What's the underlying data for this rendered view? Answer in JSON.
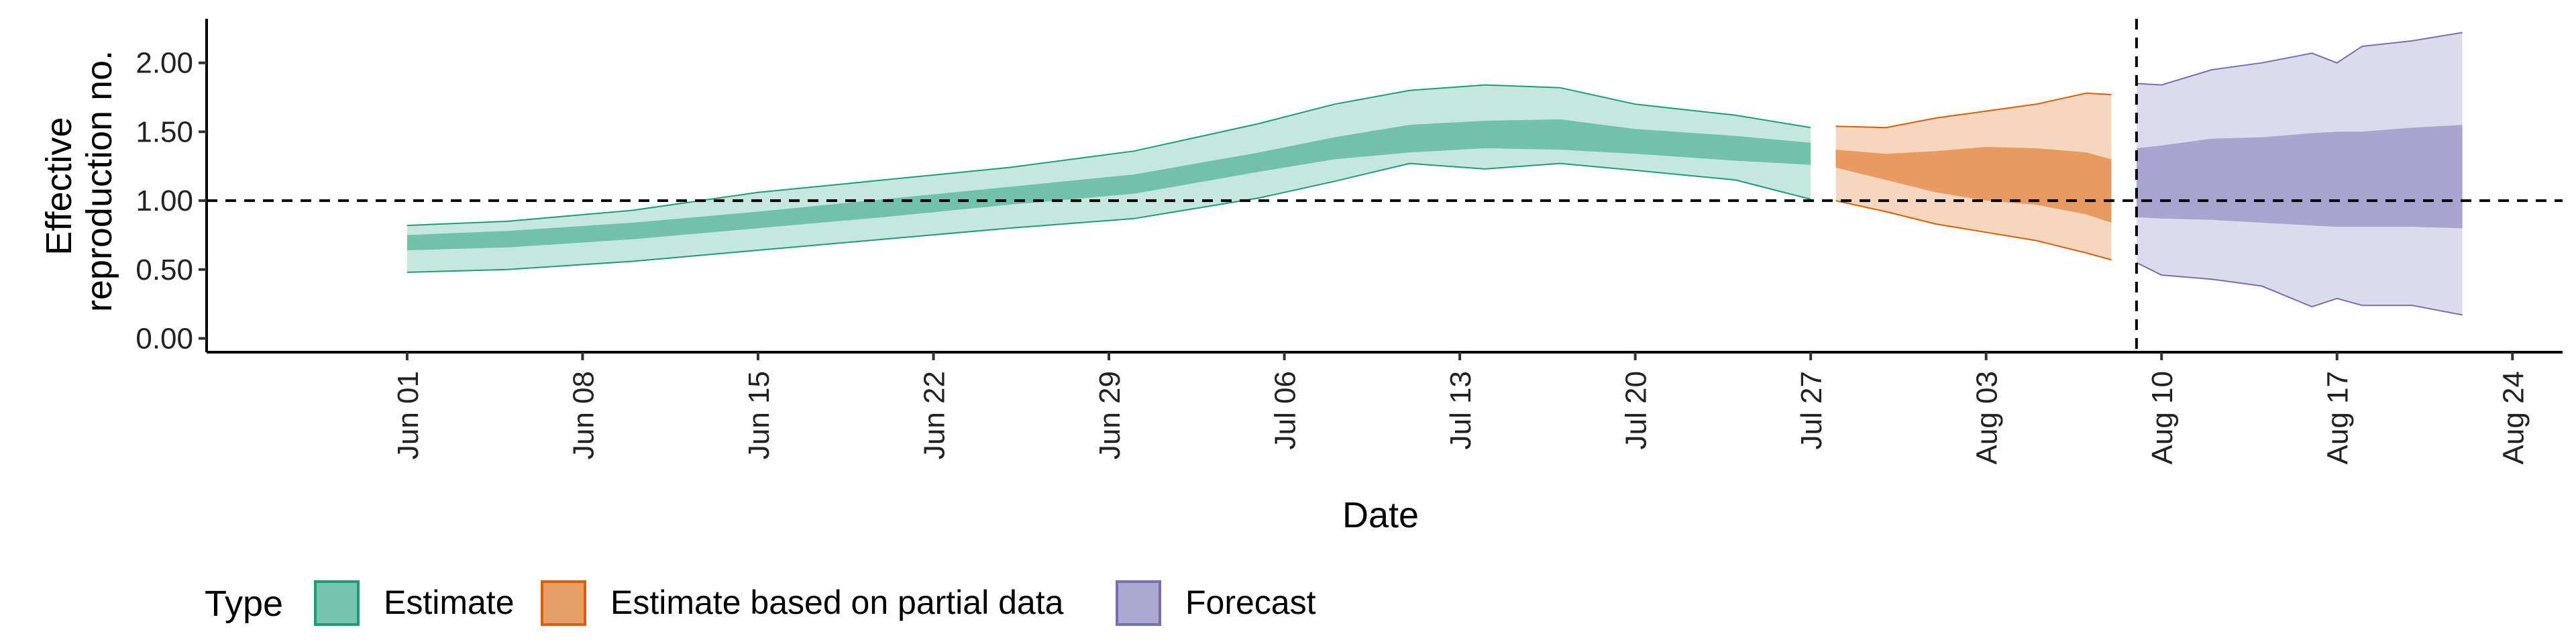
{
  "chart_data": {
    "type": "area",
    "xlabel": "Date",
    "ylabel": "Effective reproduction no.",
    "ylabel_lines": [
      "Effective",
      "reproduction no."
    ],
    "xlim": [
      "2020-05-24",
      "2020-08-26"
    ],
    "ylim": [
      -0.1,
      2.32
    ],
    "x_ticks": [
      {
        "date": "2020-06-01",
        "label": "Jun 01"
      },
      {
        "date": "2020-06-08",
        "label": "Jun 08"
      },
      {
        "date": "2020-06-15",
        "label": "Jun 15"
      },
      {
        "date": "2020-06-22",
        "label": "Jun 22"
      },
      {
        "date": "2020-06-29",
        "label": "Jun 29"
      },
      {
        "date": "2020-07-06",
        "label": "Jul 06"
      },
      {
        "date": "2020-07-13",
        "label": "Jul 13"
      },
      {
        "date": "2020-07-20",
        "label": "Jul 20"
      },
      {
        "date": "2020-07-27",
        "label": "Jul 27"
      },
      {
        "date": "2020-08-03",
        "label": "Aug 03"
      },
      {
        "date": "2020-08-10",
        "label": "Aug 10"
      },
      {
        "date": "2020-08-17",
        "label": "Aug 17"
      },
      {
        "date": "2020-08-24",
        "label": "Aug 24"
      }
    ],
    "y_ticks": [
      {
        "value": 0.0,
        "label": "0.00"
      },
      {
        "value": 0.5,
        "label": "0.50"
      },
      {
        "value": 1.0,
        "label": "1.00"
      },
      {
        "value": 1.5,
        "label": "1.50"
      },
      {
        "value": 2.0,
        "label": "2.00"
      }
    ],
    "reference_line_y": 1.0,
    "reference_line_x": "2020-08-09",
    "legend": {
      "title": "Type",
      "position": "bottom"
    },
    "series": [
      {
        "name": "Estimate",
        "fill_color": "#1b9e77",
        "line_color": "#1b9e77",
        "x": [
          "2020-06-01",
          "2020-06-05",
          "2020-06-10",
          "2020-06-15",
          "2020-06-20",
          "2020-06-25",
          "2020-06-30",
          "2020-07-05",
          "2020-07-08",
          "2020-07-11",
          "2020-07-14",
          "2020-07-17",
          "2020-07-20",
          "2020-07-24",
          "2020-07-27"
        ],
        "lower_90": [
          0.48,
          0.5,
          0.56,
          0.64,
          0.72,
          0.8,
          0.87,
          1.02,
          1.14,
          1.27,
          1.23,
          1.27,
          1.22,
          1.15,
          1.01
        ],
        "lower_50": [
          0.64,
          0.66,
          0.72,
          0.8,
          0.88,
          0.97,
          1.05,
          1.21,
          1.3,
          1.35,
          1.38,
          1.37,
          1.34,
          1.29,
          1.26
        ],
        "upper_50": [
          0.75,
          0.78,
          0.84,
          0.92,
          1.01,
          1.1,
          1.19,
          1.35,
          1.46,
          1.55,
          1.58,
          1.59,
          1.52,
          1.47,
          1.42
        ],
        "upper_90": [
          0.82,
          0.85,
          0.93,
          1.06,
          1.15,
          1.24,
          1.36,
          1.56,
          1.7,
          1.8,
          1.84,
          1.82,
          1.7,
          1.62,
          1.53
        ]
      },
      {
        "name": "Estimate based on partial data",
        "fill_color": "#d95f02",
        "line_color": "#d95f02",
        "x": [
          "2020-07-28",
          "2020-07-30",
          "2020-08-01",
          "2020-08-03",
          "2020-08-05",
          "2020-08-07",
          "2020-08-08"
        ],
        "lower_90": [
          1.0,
          0.92,
          0.83,
          0.77,
          0.71,
          0.62,
          0.57
        ],
        "lower_50": [
          1.24,
          1.15,
          1.06,
          1.0,
          0.97,
          0.9,
          0.84
        ],
        "upper_50": [
          1.37,
          1.34,
          1.36,
          1.39,
          1.38,
          1.35,
          1.3
        ],
        "upper_90": [
          1.54,
          1.53,
          1.6,
          1.65,
          1.7,
          1.78,
          1.77
        ]
      },
      {
        "name": "Forecast",
        "fill_color": "#7570b3",
        "line_color": "#7570b3",
        "x": [
          "2020-08-09",
          "2020-08-10",
          "2020-08-12",
          "2020-08-14",
          "2020-08-16",
          "2020-08-17",
          "2020-08-18",
          "2020-08-20",
          "2020-08-22"
        ],
        "lower_90": [
          0.55,
          0.46,
          0.43,
          0.38,
          0.23,
          0.29,
          0.24,
          0.24,
          0.17
        ],
        "lower_50": [
          0.88,
          0.87,
          0.86,
          0.84,
          0.82,
          0.81,
          0.81,
          0.81,
          0.8
        ],
        "upper_50": [
          1.38,
          1.4,
          1.45,
          1.46,
          1.49,
          1.5,
          1.5,
          1.53,
          1.55
        ],
        "upper_90": [
          1.85,
          1.84,
          1.95,
          2.0,
          2.07,
          2.0,
          2.12,
          2.16,
          2.22
        ]
      }
    ]
  }
}
